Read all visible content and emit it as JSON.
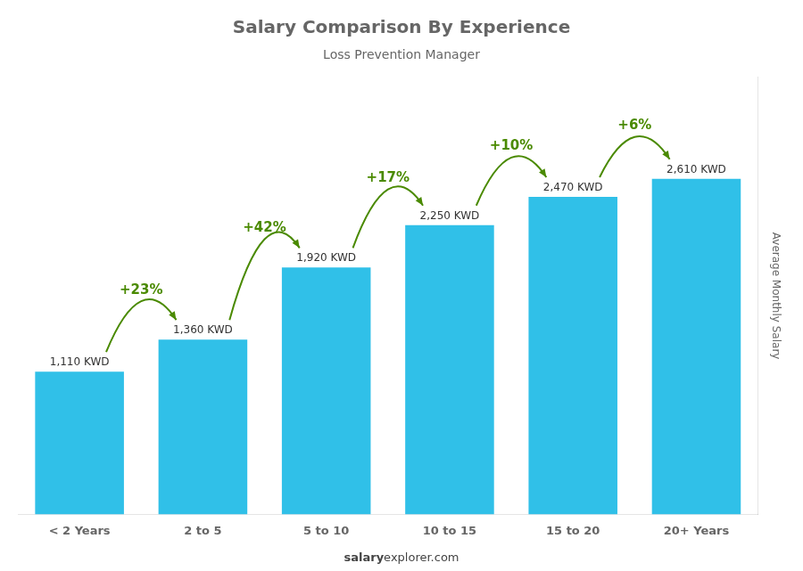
{
  "chart_data": {
    "type": "bar",
    "title": "Salary Comparison By Experience",
    "subtitle": "Loss Prevention Manager",
    "categories": [
      "< 2 Years",
      "2 to 5",
      "5 to 10",
      "10 to 15",
      "15 to 20",
      "20+ Years"
    ],
    "values": [
      1110,
      1360,
      1920,
      2250,
      2470,
      2610
    ],
    "value_labels": [
      "1,110 KWD",
      "1,360 KWD",
      "1,920 KWD",
      "2,250 KWD",
      "2,470 KWD",
      "2,610 KWD"
    ],
    "data_labels": true,
    "color": "#30C0E8",
    "ylabel": "Average Monthly Salary",
    "ylim": [
      0,
      3400
    ],
    "tick_labels": "x",
    "grid": false,
    "annotations": [
      "+23%",
      "+42%",
      "+17%",
      "+10%",
      "+6%"
    ],
    "footer": [
      "salary",
      "explorer.com"
    ]
  }
}
